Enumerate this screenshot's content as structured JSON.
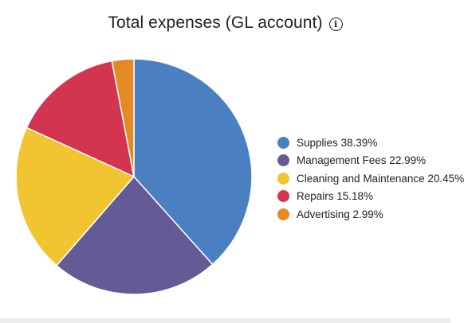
{
  "chart_data": {
    "type": "pie",
    "title": "Total expenses (GL account)",
    "info_icon": "info-icon",
    "legend_position": "right",
    "slices": [
      {
        "label": "Supplies",
        "value": 38.39,
        "display": "38.39%",
        "color": "#4a80c1"
      },
      {
        "label": "Management Fees",
        "value": 22.99,
        "display": "22.99%",
        "color": "#635a96"
      },
      {
        "label": "Cleaning and Maintenance",
        "value": 20.45,
        "display": "20.45%",
        "color": "#f0c531"
      },
      {
        "label": "Repairs",
        "value": 15.18,
        "display": "15.18%",
        "color": "#d3344f"
      },
      {
        "label": "Advertising",
        "value": 2.99,
        "display": "2.99%",
        "color": "#e48a25"
      }
    ]
  }
}
